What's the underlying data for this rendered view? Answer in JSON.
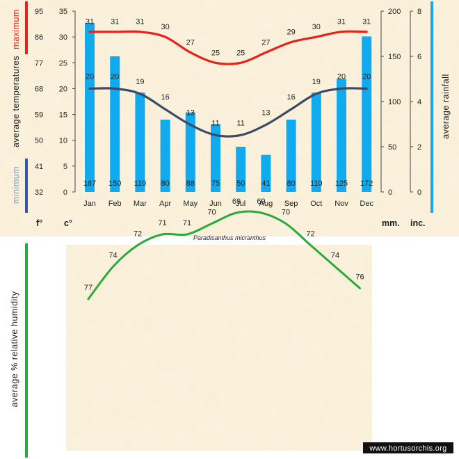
{
  "chart_data": [
    {
      "type": "bar",
      "title": "",
      "caption": "Paradisanthus micranthus",
      "categories": [
        "Jan",
        "Feb",
        "Mar",
        "Apr",
        "May",
        "Jun",
        "Jul",
        "Aug",
        "Sep",
        "Oct",
        "Nov",
        "Dec"
      ],
      "series": [
        {
          "name": "",
          "type": "bar",
          "axis": "rainfall_mm",
          "color": "#12aaee",
          "values": [
            187,
            150,
            110,
            80,
            88,
            75,
            50,
            41,
            80,
            110,
            125,
            172
          ]
        },
        {
          "name": "maximum",
          "type": "line",
          "axis": "temp_c",
          "color": "#e8211b",
          "values": [
            31,
            31,
            31,
            30,
            27,
            25,
            25,
            27,
            29,
            30,
            31,
            31
          ]
        },
        {
          "name": "minimum",
          "type": "line",
          "axis": "temp_c",
          "color": "#3b4a66",
          "values": [
            20,
            20,
            19,
            16,
            13,
            11,
            11,
            13,
            16,
            19,
            20,
            20
          ]
        }
      ],
      "axes": {
        "temp_f": {
          "unit_label": "f°",
          "ticks": [
            32,
            41,
            50,
            59,
            68,
            77,
            86,
            95
          ]
        },
        "temp_c": {
          "unit_label": "c°",
          "range": [
            0,
            35
          ],
          "ticks": [
            0,
            5,
            10,
            15,
            20,
            25,
            30,
            35
          ]
        },
        "rainfall_mm": {
          "unit_label": "mm.",
          "range": [
            0,
            200
          ],
          "ticks": [
            0,
            50,
            100,
            150,
            200
          ]
        },
        "rainfall_in": {
          "unit_label": "inc.",
          "range": [
            0,
            8
          ],
          "ticks": [
            0,
            2,
            4,
            6,
            8
          ]
        }
      },
      "side_labels": {
        "left_max": "maximum",
        "left_temps": "average  temperatures",
        "left_min": "minimum",
        "right": "average  rainfall"
      },
      "grid": false,
      "legend": "none"
    },
    {
      "type": "line",
      "title": "",
      "ylabel": "average %  relative humidity",
      "series": [
        {
          "name": "",
          "color": "#2aaa3a",
          "values": [
            77,
            74,
            72,
            71,
            71,
            70,
            69,
            69,
            70,
            72,
            74,
            76
          ]
        }
      ]
    }
  ],
  "watermark": "www.hortusorchis.org",
  "colors": {
    "background": "#faf0da",
    "rainfall": "#12aaee",
    "max_temp": "#e8211b",
    "min_temp": "#3b4a66",
    "humidity": "#2aaa3a"
  }
}
